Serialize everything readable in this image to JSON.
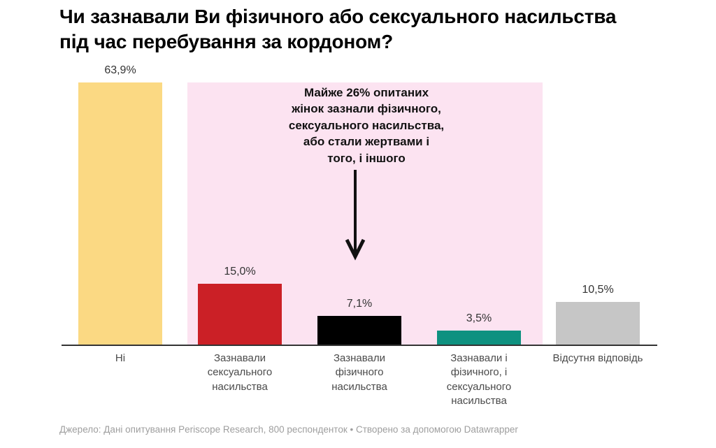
{
  "title": "Чи зазнавали Ви фізичного або сексуального насильства\nпід час перебування за кордоном?",
  "annotation": {
    "text": "Майже 26% опитаних\nжінок зазнали фізичного,\nсексуального насильства,\nабо стали жертвами і\nтого, і іншого"
  },
  "footer": "Джерело: Дані опитування Periscope Research, 800 респонденток • Створено за допомогою Datawrapper",
  "chart_data": {
    "type": "bar",
    "title": "Чи зазнавали Ви фізичного або сексуального насильства під час перебування за кордоном?",
    "categories": [
      "Ні",
      "Зазнавали\nсексуального\nнасильства",
      "Зазнавали\nфізичного\nнасильства",
      "Зазнавали і\nфізичного, і\nсексуального\nнасильства",
      "Відсутня відповідь"
    ],
    "values": [
      63.9,
      15.0,
      7.1,
      3.5,
      10.5
    ],
    "value_labels": [
      "63,9%",
      "15,0%",
      "7,1%",
      "3,5%",
      "10,5%"
    ],
    "bar_colors": [
      "#FBD983",
      "#CB2026",
      "#000000",
      "#0E9180",
      "#C6C6C6"
    ],
    "highlight_region": {
      "color": "#FCE3F1",
      "covers_categories": [
        1,
        2,
        3
      ],
      "note_value": "26%"
    },
    "xlabel": "",
    "ylabel": "",
    "ylim": [
      0,
      63.9
    ],
    "grid": false,
    "legend": false,
    "axis_line_color": "#333333"
  }
}
